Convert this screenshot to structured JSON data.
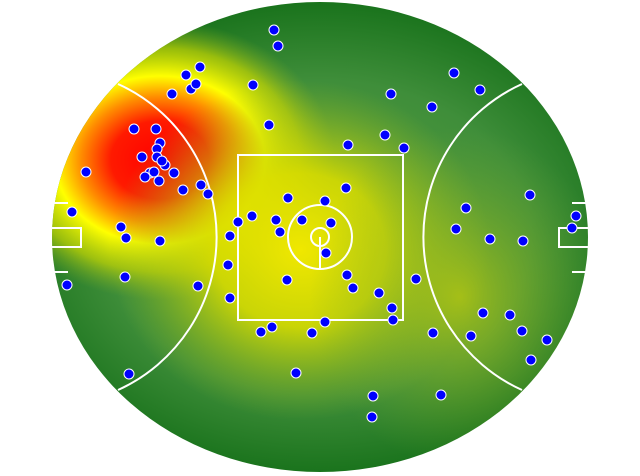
{
  "chart_data": {
    "type": "heatmap",
    "title": "",
    "xlabel": "",
    "ylabel": "",
    "xlim": [
      -268,
      268
    ],
    "ylim": [
      -235,
      235
    ],
    "grid": false,
    "legend": "none",
    "colors": {
      "heat_low": "#0f6e14",
      "heat_mid": "#e0e000",
      "heat_high": "#ff0000",
      "point_fill": "#0000ff",
      "point_stroke": "#ffffff",
      "field_lines": "#ffffff"
    },
    "hotspots": [
      {
        "x": -160,
        "y": 77,
        "intensity": 1.0
      },
      {
        "x": -20,
        "y": -13,
        "intensity": 0.6
      },
      {
        "x": 140,
        "y": -60,
        "intensity": 0.3
      }
    ],
    "points": [
      [
        -46,
        207
      ],
      [
        -42,
        191
      ],
      [
        -134,
        162
      ],
      [
        -120,
        170
      ],
      [
        -129,
        148
      ],
      [
        -124,
        153
      ],
      [
        -148,
        143
      ],
      [
        -67,
        152
      ],
      [
        -186,
        108
      ],
      [
        -164,
        108
      ],
      [
        -160,
        94
      ],
      [
        -163,
        88
      ],
      [
        -178,
        80
      ],
      [
        -163,
        80
      ],
      [
        -155,
        72
      ],
      [
        -158,
        76
      ],
      [
        -170,
        64
      ],
      [
        -175,
        60
      ],
      [
        -166,
        65
      ],
      [
        -161,
        56
      ],
      [
        -146,
        64
      ],
      [
        -137,
        47
      ],
      [
        -119,
        52
      ],
      [
        -112,
        43
      ],
      [
        -234,
        65
      ],
      [
        -248,
        25
      ],
      [
        -199,
        10
      ],
      [
        -194,
        -1
      ],
      [
        -160,
        -4
      ],
      [
        -253,
        -48
      ],
      [
        -195,
        -40
      ],
      [
        -191,
        -137
      ],
      [
        -122,
        -49
      ],
      [
        -90,
        -61
      ],
      [
        -92,
        -28
      ],
      [
        -90,
        1
      ],
      [
        -82,
        15
      ],
      [
        -68,
        21
      ],
      [
        -51,
        112
      ],
      [
        -44,
        17
      ],
      [
        -40,
        5
      ],
      [
        -32,
        39
      ],
      [
        -18,
        17
      ],
      [
        5,
        36
      ],
      [
        11,
        14
      ],
      [
        6,
        -16
      ],
      [
        26,
        49
      ],
      [
        28,
        92
      ],
      [
        -33,
        -43
      ],
      [
        -59,
        -95
      ],
      [
        -48,
        -90
      ],
      [
        -8,
        -96
      ],
      [
        5,
        -85
      ],
      [
        -24,
        -136
      ],
      [
        27,
        -38
      ],
      [
        33,
        -51
      ],
      [
        59,
        -56
      ],
      [
        72,
        -71
      ],
      [
        73,
        -83
      ],
      [
        96,
        -42
      ],
      [
        53,
        -159
      ],
      [
        52,
        -180
      ],
      [
        121,
        -158
      ],
      [
        113,
        -96
      ],
      [
        151,
        -99
      ],
      [
        163,
        -76
      ],
      [
        190,
        -78
      ],
      [
        202,
        -94
      ],
      [
        227,
        -103
      ],
      [
        211,
        -123
      ],
      [
        71,
        143
      ],
      [
        65,
        102
      ],
      [
        84,
        89
      ],
      [
        112,
        130
      ],
      [
        134,
        164
      ],
      [
        160,
        147
      ],
      [
        146,
        29
      ],
      [
        136,
        8
      ],
      [
        170,
        -2
      ],
      [
        203,
        -4
      ],
      [
        210,
        42
      ],
      [
        256,
        21
      ],
      [
        252,
        9
      ]
    ]
  }
}
